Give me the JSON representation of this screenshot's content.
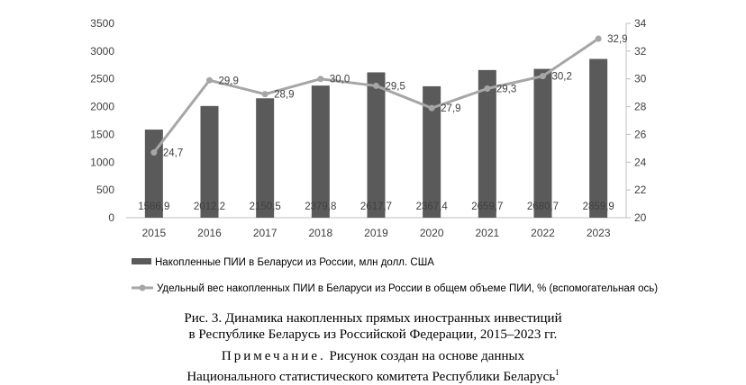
{
  "chart_data": {
    "type": "bar+line",
    "categories": [
      "2015",
      "2016",
      "2017",
      "2018",
      "2019",
      "2020",
      "2021",
      "2022",
      "2023"
    ],
    "series": [
      {
        "name": "Накопленные ПИИ в Беларуси из России, млн долл. США",
        "type": "bar",
        "axis": "left",
        "values": [
          1586.9,
          2012.2,
          2150.5,
          2379.8,
          2617.7,
          2367.4,
          2659.7,
          2680.7,
          2859.9
        ],
        "labels": [
          "1586,9",
          "2012,2",
          "2150,5",
          "2379,8",
          "2617,7",
          "2367,4",
          "2659,7",
          "2680,7",
          "2859,9"
        ],
        "color": "#5a5a5a"
      },
      {
        "name": "Удельный вес накопленных ПИИ в Беларуси из России в общем объеме ПИИ, % (вспомогательная ось)",
        "type": "line",
        "axis": "right",
        "values": [
          24.7,
          29.9,
          28.9,
          30.0,
          29.5,
          27.9,
          29.3,
          30.2,
          32.9
        ],
        "labels": [
          "24,7",
          "29,9",
          "28,9",
          "30,0",
          "29,5",
          "27,9",
          "29,3",
          "30,2",
          "32,9"
        ],
        "color": "#a6a6a6"
      }
    ],
    "y_left": {
      "min": 0,
      "max": 3500,
      "ticks": [
        "0",
        "500",
        "1000",
        "1500",
        "2000",
        "2500",
        "3000",
        "3500"
      ]
    },
    "y_right": {
      "min": 20,
      "max": 34,
      "ticks": [
        "20",
        "22",
        "24",
        "26",
        "28",
        "30",
        "32",
        "34"
      ]
    },
    "grid": false,
    "legend_position": "bottom-left"
  },
  "caption": {
    "line1": "Рис. 3. Динамика накопленных прямых иностранных инвестиций",
    "line2": "в Республике Беларусь из Российской Федерации, 2015–2023 гг.",
    "note_label": "Примечание.",
    "note_text": "Рисунок создан на основе данных",
    "line4": "Национального статистического комитета Республики Беларусь",
    "footnote": "1"
  }
}
